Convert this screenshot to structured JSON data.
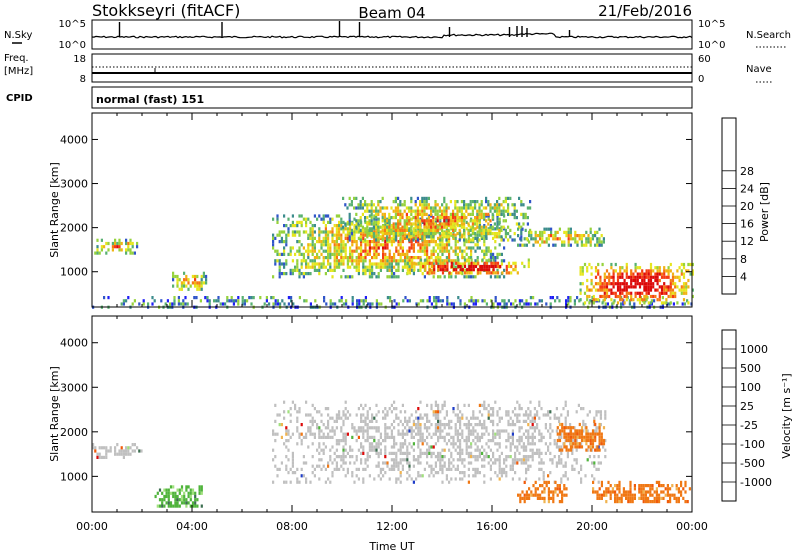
{
  "header": {
    "station": "Stokkseyri (fitACF)",
    "beam": "Beam 04",
    "date": "21/Feb/2016"
  },
  "nsky_panel": {
    "left_label": "N.Sky",
    "left_ticks": [
      "10^5",
      "10^0"
    ],
    "right_label": "N.Search",
    "right_ticks": [
      "10^5",
      "10^0"
    ]
  },
  "freq_panel": {
    "left_label_1": "Freq.",
    "left_label_2": "[MHz]",
    "left_ticks": [
      "18",
      "8"
    ],
    "right_label": "Nave",
    "right_ticks": [
      "60",
      "0"
    ]
  },
  "cpid": {
    "label": "CPID",
    "mode": "normal (fast) 151"
  },
  "xaxis": {
    "title": "Time UT",
    "tick_labels": [
      "00:00",
      "04:00",
      "08:00",
      "12:00",
      "16:00",
      "20:00",
      "00:00"
    ]
  },
  "chart_data": [
    {
      "type": "heatmap",
      "name": "power",
      "ylabel": "Slant Range [km]",
      "y_tick_labels": [
        "1000",
        "2000",
        "3000",
        "4000"
      ],
      "ylim": [
        200,
        4600
      ],
      "xlim_hours": [
        0,
        24
      ],
      "colorbar": {
        "title": "Power [dB]",
        "tick_labels": [
          "4",
          "8",
          "12",
          "16",
          "20",
          "24",
          "28"
        ],
        "colors": [
          "#1e1ef5",
          "#3055c8",
          "#3c8c8c",
          "#58b070",
          "#96d23c",
          "#e6e61e",
          "#f0b414",
          "#f57814",
          "#f53c14",
          "#dc0a0a"
        ]
      },
      "features": [
        {
          "time": [
            0.0,
            24.0
          ],
          "range": [
            200,
            450
          ],
          "power": "low",
          "desc": "near-range scatter"
        },
        {
          "time": [
            0.0,
            1.8
          ],
          "range": [
            1450,
            1750
          ],
          "power": "medium"
        },
        {
          "time": [
            3.2,
            4.6
          ],
          "range": [
            600,
            1000
          ],
          "power": "medium"
        },
        {
          "time": [
            7.2,
            16.5
          ],
          "range": [
            900,
            2300
          ],
          "power": "medium"
        },
        {
          "time": [
            10.0,
            17.5
          ],
          "range": [
            1700,
            2700
          ],
          "power": "medium"
        },
        {
          "time": [
            12.5,
            17.5
          ],
          "range": [
            950,
            1300
          ],
          "power": "high"
        },
        {
          "time": [
            17.0,
            20.5
          ],
          "range": [
            1600,
            2000
          ],
          "power": "medium"
        },
        {
          "time": [
            19.5,
            24.0
          ],
          "range": [
            300,
            1200
          ],
          "power": "high"
        }
      ]
    },
    {
      "type": "heatmap",
      "name": "velocity",
      "ylabel": "Slant Range [km]",
      "y_tick_labels": [
        "1000",
        "2000",
        "3000",
        "4000"
      ],
      "ylim": [
        200,
        4600
      ],
      "xlim_hours": [
        0,
        24
      ],
      "colorbar": {
        "title": "Velocity [m s⁻¹]",
        "tick_labels": [
          "1000",
          "500",
          "100",
          "25",
          "-25",
          "-100",
          "-500",
          "-1000"
        ],
        "colors": [
          "#1e3cc8",
          "#3c6e50",
          "#50b43c",
          "#a0e07c",
          "#c0c0c0",
          "#f0b450",
          "#f07814",
          "#f05a0a",
          "#dc0a0a"
        ]
      },
      "features": [
        {
          "time": [
            7.2,
            20.5
          ],
          "range": [
            900,
            2700
          ],
          "velocity": "near zero (grey)"
        },
        {
          "time": [
            18.5,
            20.5
          ],
          "range": [
            1600,
            2200
          ],
          "velocity": "negative (orange)"
        },
        {
          "time": [
            17.0,
            19.0
          ],
          "range": [
            450,
            900
          ],
          "velocity": "negative (orange)"
        },
        {
          "time": [
            20.0,
            24.0
          ],
          "range": [
            400,
            900
          ],
          "velocity": "negative (orange)"
        },
        {
          "time": [
            2.5,
            4.5
          ],
          "range": [
            300,
            800
          ],
          "velocity": "positive (green)"
        },
        {
          "time": [
            0.0,
            2.0
          ],
          "range": [
            1450,
            1750
          ],
          "velocity": "near zero (grey)"
        }
      ]
    }
  ]
}
